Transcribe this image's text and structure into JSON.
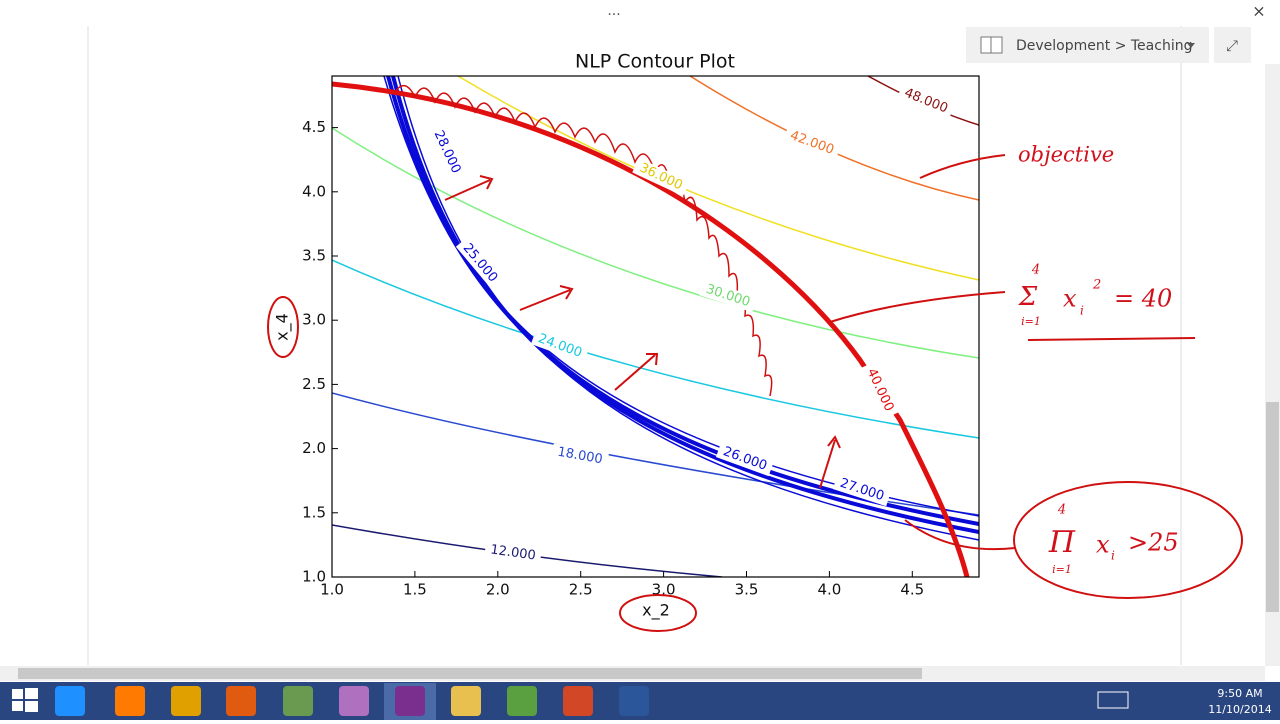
{
  "window": {
    "menu_dots": "...",
    "close": "×",
    "expand": "⤢"
  },
  "notebook": {
    "breadcrumb": "Development > Teaching"
  },
  "plot": {
    "title": "NLP Contour Plot",
    "x_label": "x_2",
    "y_label": "x_4",
    "x_ticks": [
      "1.0",
      "1.5",
      "2.0",
      "2.5",
      "3.0",
      "3.5",
      "4.0",
      "4.5"
    ],
    "y_ticks": [
      "1.0",
      "1.5",
      "2.0",
      "2.5",
      "3.0",
      "3.5",
      "4.0",
      "4.5"
    ],
    "contour_labels": [
      "12.000",
      "18.000",
      "24.000",
      "30.000",
      "36.000",
      "42.000",
      "48.000",
      "28.000",
      "25.000",
      "26.000",
      "27.000",
      "40.000"
    ]
  },
  "annotations": {
    "objective": "objective",
    "sum_constraint": {
      "symbol": "Σ",
      "upper": "4",
      "lower": "i=1",
      "var": "x",
      "sub": "i",
      "sup": "2",
      "rhs": "= 40"
    },
    "product_constraint": {
      "symbol": "Π",
      "upper": "4",
      "lower": "i=1",
      "var": "x",
      "sub": "i",
      "rhs": ">25"
    }
  },
  "taskbar": {
    "time": "9:50 AM",
    "date": "11/10/2014"
  }
}
